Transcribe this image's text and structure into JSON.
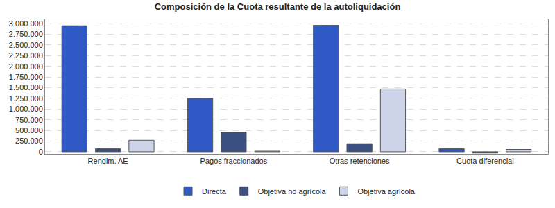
{
  "chart_data": {
    "type": "bar",
    "title": "Composición de la Cuota resultante de la autoliquidación",
    "categories": [
      "Rendim. AE",
      "Pagos fraccionados",
      "Otras retenciones",
      "Cuota diferencial"
    ],
    "series": [
      {
        "name": "Directa",
        "color": "#2f5ac6",
        "values": [
          2950000,
          1250000,
          2960000,
          70000
        ]
      },
      {
        "name": "Objetiva no agrícola",
        "color": "#3b5080",
        "values": [
          70000,
          460000,
          190000,
          -30000
        ]
      },
      {
        "name": "Objetiva agrícola",
        "color": "#cdd3e8",
        "values": [
          270000,
          15000,
          1470000,
          55000
        ]
      }
    ],
    "ylim": [
      -50000,
      3100000
    ],
    "yticks": [
      0,
      {
        "value": 250000,
        "label": "250.000"
      },
      {
        "value": 500000,
        "label": "500.000"
      },
      {
        "value": 750000,
        "label": "750.000"
      },
      {
        "value": 1000000,
        "label": "1.000.000"
      },
      {
        "value": 1250000,
        "label": "1.250.000"
      },
      {
        "value": 1500000,
        "label": "1.500.000"
      },
      {
        "value": 1750000,
        "label": "1.750.000"
      },
      {
        "value": 2000000,
        "label": "2.000.000"
      },
      {
        "value": 2250000,
        "label": "2.250.000"
      },
      {
        "value": 2500000,
        "label": "2.500.000"
      },
      {
        "value": 2750000,
        "label": "2.750.000"
      },
      {
        "value": 3000000,
        "label": "3.000.000"
      }
    ],
    "grid": true,
    "legend": "bottom"
  }
}
